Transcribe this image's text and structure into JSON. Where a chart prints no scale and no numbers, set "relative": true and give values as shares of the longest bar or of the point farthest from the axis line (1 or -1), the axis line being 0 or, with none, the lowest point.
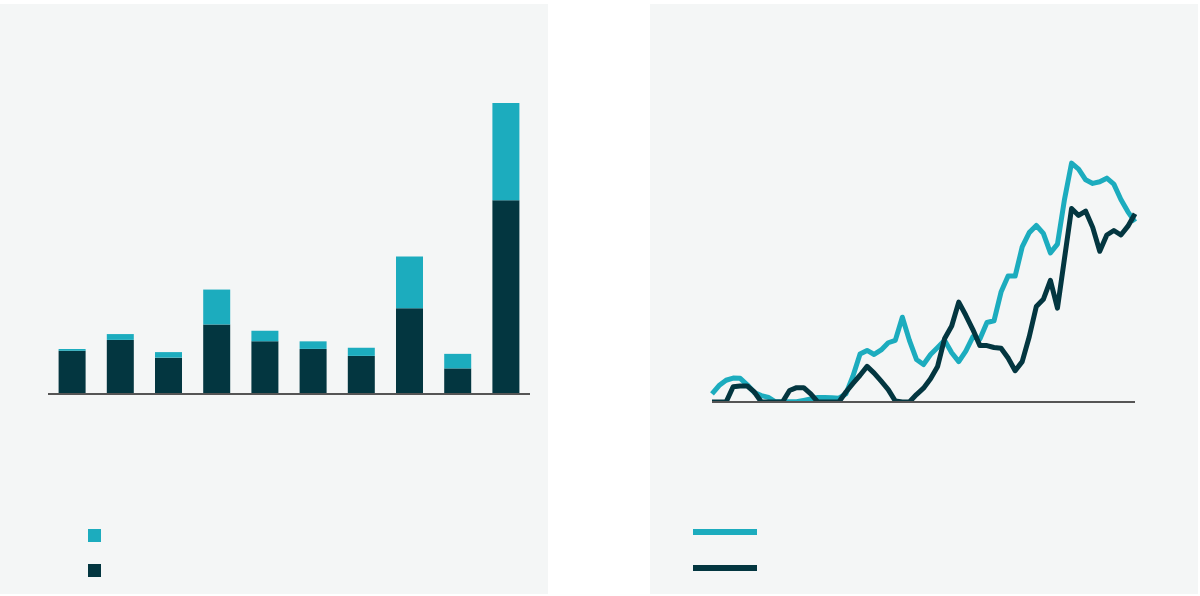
{
  "chart_data": [
    {
      "type": "bar",
      "relative": true,
      "stacked": true,
      "categories": [
        null,
        null,
        null,
        null,
        null,
        null,
        null,
        null,
        null,
        null
      ],
      "series": [
        {
          "color": "#033640",
          "values": [
            0.149,
            0.186,
            0.125,
            0.239,
            0.181,
            0.155,
            0.131,
            0.295,
            0.088,
            0.666
          ]
        },
        {
          "color": "#1cacbe",
          "values": [
            0.006,
            0.02,
            0.019,
            0.12,
            0.036,
            0.026,
            0.028,
            0.178,
            0.05,
            0.334
          ]
        }
      ]
    },
    {
      "type": "line",
      "relative": true,
      "line_style": "solid",
      "marker": "none",
      "categories": [
        null,
        null,
        null,
        null,
        null,
        null,
        null,
        null,
        null,
        null,
        null,
        null,
        null,
        null,
        null,
        null,
        null,
        null,
        null,
        null,
        null,
        null,
        null,
        null,
        null,
        null,
        null,
        null,
        null,
        null,
        null,
        null,
        null,
        null,
        null,
        null,
        null,
        null,
        null,
        null,
        null,
        null,
        null,
        null,
        null,
        null,
        null,
        null,
        null,
        null,
        null,
        null,
        null,
        null,
        null,
        null,
        null,
        null,
        null,
        null,
        null
      ],
      "series": [
        {
          "color": "#1cacbe",
          "values": [
            0.034,
            0.069,
            0.091,
            0.1,
            0.099,
            0.072,
            0.04,
            0.027,
            0.019,
            0.001,
            0.001,
            0.001,
            0.001,
            0.007,
            0.013,
            0.019,
            0.019,
            0.018,
            0.016,
            0.034,
            0.109,
            0.201,
            0.216,
            0.199,
            0.218,
            0.248,
            0.258,
            0.355,
            0.258,
            0.178,
            0.157,
            0.199,
            0.228,
            0.258,
            0.206,
            0.169,
            0.213,
            0.273,
            0.264,
            0.333,
            0.34,
            0.46,
            0.527,
            0.527,
            0.649,
            0.709,
            0.739,
            0.706,
            0.624,
            0.661,
            0.848,
            1,
            0.975,
            0.93,
            0.915,
            0.922,
            0.937,
            0.912,
            0.848,
            0.796,
            0.754
          ]
        },
        {
          "color": "#033640",
          "values": [
            0,
            0,
            0,
            0.064,
            0.067,
            0.067,
            0.042,
            0,
            0,
            0,
            0,
            0.048,
            0.06,
            0.06,
            0.034,
            0,
            0,
            0,
            0,
            0.042,
            0.078,
            0.112,
            0.149,
            0.121,
            0.087,
            0.052,
            0.004,
            0,
            0,
            0.031,
            0.058,
            0.097,
            0.149,
            0.266,
            0.318,
            0.418,
            0.363,
            0.303,
            0.236,
            0.236,
            0.228,
            0.225,
            0.184,
            0.131,
            0.169,
            0.273,
            0.4,
            0.43,
            0.509,
            0.393,
            0.601,
            0.81,
            0.781,
            0.799,
            0.731,
            0.631,
            0.699,
            0.718,
            0.699,
            0.736,
            0.788
          ]
        }
      ]
    }
  ]
}
